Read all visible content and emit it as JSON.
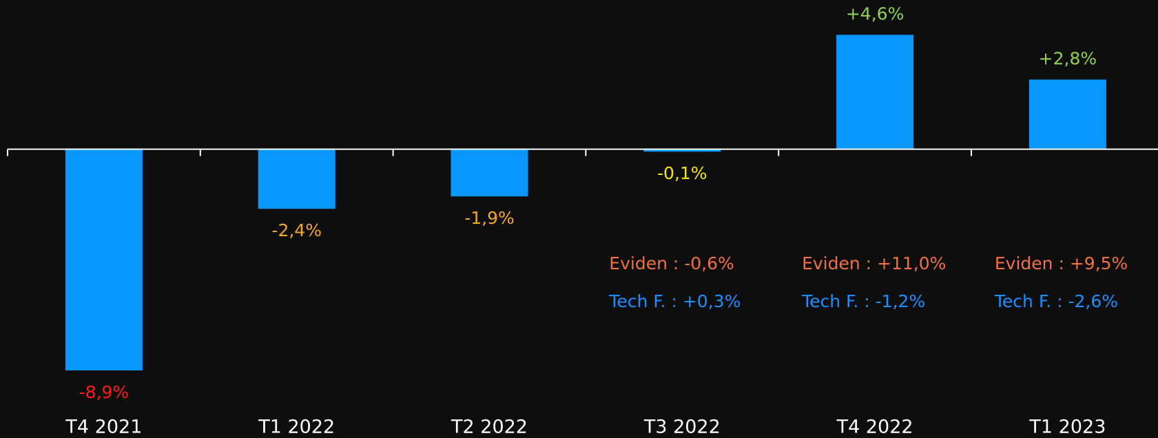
{
  "chart_data": {
    "type": "bar",
    "categories": [
      "T4 2021",
      "T1 2022",
      "T2 2022",
      "T3 2022",
      "T4 2022",
      "T1 2023"
    ],
    "values": [
      -8.9,
      -2.4,
      -1.9,
      -0.1,
      4.6,
      2.8
    ],
    "value_labels": [
      "-8,9%",
      "-2,4%",
      "-1,9%",
      "-0,1%",
      "+4,6%",
      "+2,8%"
    ],
    "value_label_colors": [
      "#ff1a1a",
      "#f5a623",
      "#f5a623",
      "#f2e600",
      "#8fd14f",
      "#8fd14f"
    ],
    "color": "#0896ff",
    "ylim": [
      -10,
      6
    ],
    "annotations": [
      {
        "category": "T3 2022",
        "lines": [
          {
            "text": "Eviden : -0,6%",
            "color": "#f0703f"
          },
          {
            "text": "Tech F. : +0,3%",
            "color": "#1a8fff"
          }
        ]
      },
      {
        "category": "T4 2022",
        "lines": [
          {
            "text": "Eviden : +11,0%",
            "color": "#f0703f"
          },
          {
            "text": "Tech F. : -1,2%",
            "color": "#1a8fff"
          }
        ]
      },
      {
        "category": "T1 2023",
        "lines": [
          {
            "text": "Eviden : +9,5%",
            "color": "#f0703f"
          },
          {
            "text": "Tech F. : -2,6%",
            "color": "#1a8fff"
          }
        ]
      }
    ]
  }
}
